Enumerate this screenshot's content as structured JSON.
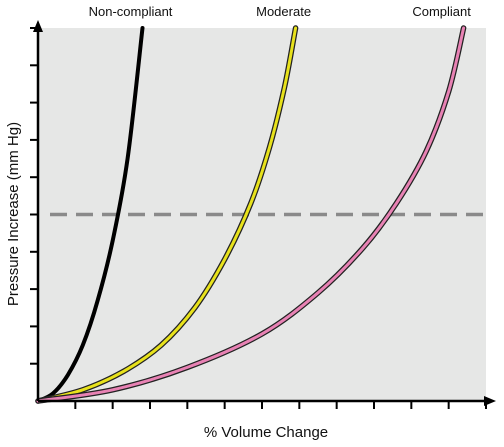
{
  "chart_data": {
    "type": "line",
    "title": "",
    "xlabel": "% Volume Change",
    "ylabel": "Pressure Increase (mm Hg)",
    "xlim": [
      0,
      12
    ],
    "ylim": [
      0,
      10
    ],
    "x_tick_count": 12,
    "y_tick_count": 10,
    "grid": false,
    "threshold_y": 5.0,
    "colors": {
      "plot_background": "#e6e7e6",
      "threshold_line": "#8a8a8a",
      "outline": "#222222"
    },
    "series": [
      {
        "name": "Non-compliant",
        "color": "#000000",
        "x": [
          0,
          0.4,
          0.8,
          1.2,
          1.6,
          2.0,
          2.4,
          2.8
        ],
        "y": [
          0,
          0.2,
          0.7,
          1.5,
          2.7,
          4.3,
          6.5,
          10.0
        ]
      },
      {
        "name": "Moderate",
        "color": "#e8e21c",
        "x": [
          0,
          1.2,
          2.3,
          3.3,
          4.2,
          5.0,
          5.7,
          6.2,
          6.6,
          6.9
        ],
        "y": [
          0,
          0.3,
          0.8,
          1.5,
          2.5,
          3.8,
          5.3,
          6.8,
          8.4,
          10.0
        ]
      },
      {
        "name": "Compliant",
        "color": "#e882b4",
        "x": [
          0,
          2.0,
          4.0,
          6.0,
          7.5,
          8.7,
          9.6,
          10.4,
          11.0,
          11.4
        ],
        "y": [
          0,
          0.3,
          0.9,
          1.8,
          2.9,
          4.1,
          5.3,
          6.7,
          8.3,
          10.0
        ]
      }
    ]
  }
}
